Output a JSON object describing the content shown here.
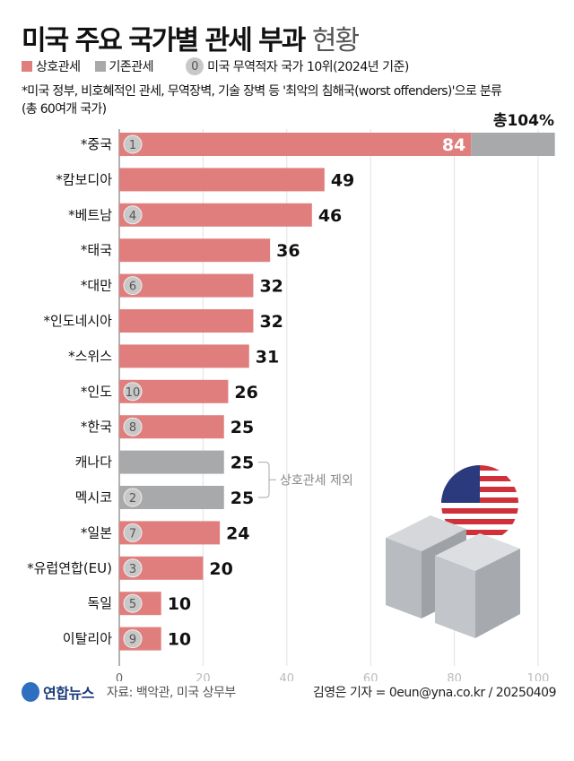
{
  "title": {
    "main": "미국 주요 국가별 관세 부과",
    "light": "현황"
  },
  "legend": {
    "reciprocal": "상호관세",
    "existing": "기존관세",
    "rank_symbol": "0",
    "rank_label": "미국 무역적자 국가 10위(2024년 기준)"
  },
  "note": {
    "line1": "*미국 정부, 비호혜적인 관세, 무역장벽, 기술 장벽 등 '최악의 침해국(worst offenders)'으로 분류",
    "line2": "(총 60여개 국가)"
  },
  "total_label": "총104%",
  "exclusion_label": "상호관세 제외",
  "colors": {
    "reciprocal": "#e07e7e",
    "existing": "#a8a9ab",
    "rank_circle": "#c8c8c8"
  },
  "chart_data": {
    "type": "bar",
    "orientation": "horizontal",
    "xlim": [
      0,
      104
    ],
    "xticks": [
      0,
      20,
      40,
      60,
      80,
      100
    ],
    "grid": true,
    "categories": [
      "*중국",
      "*캄보디아",
      "*베트남",
      "*태국",
      "*대만",
      "*인도네시아",
      "*스위스",
      "*인도",
      "*한국",
      "캐나다",
      "멕시코",
      "*일본",
      "*유럽연합(EU)",
      "독일",
      "이탈리아"
    ],
    "ranks": [
      "1",
      "",
      "4",
      "",
      "6",
      "",
      "",
      "10",
      "8",
      "",
      "2",
      "7",
      "3",
      "5",
      "9"
    ],
    "series": [
      {
        "name": "상호관세",
        "values": [
          84,
          49,
          46,
          36,
          32,
          32,
          31,
          26,
          25,
          0,
          0,
          24,
          20,
          10,
          10
        ]
      },
      {
        "name": "기존관세",
        "values": [
          20,
          0,
          0,
          0,
          0,
          0,
          0,
          0,
          0,
          25,
          25,
          0,
          0,
          0,
          0
        ]
      }
    ],
    "value_labels": [
      "84",
      "49",
      "46",
      "36",
      "32",
      "32",
      "31",
      "26",
      "25",
      "25",
      "25",
      "24",
      "20",
      "10",
      "10"
    ]
  },
  "footer": {
    "logo": "연합뉴스",
    "source": "자료: 백악관, 미국 상무부",
    "credit": "김영은 기자 = 0eun@yna.co.kr / 20250409"
  }
}
